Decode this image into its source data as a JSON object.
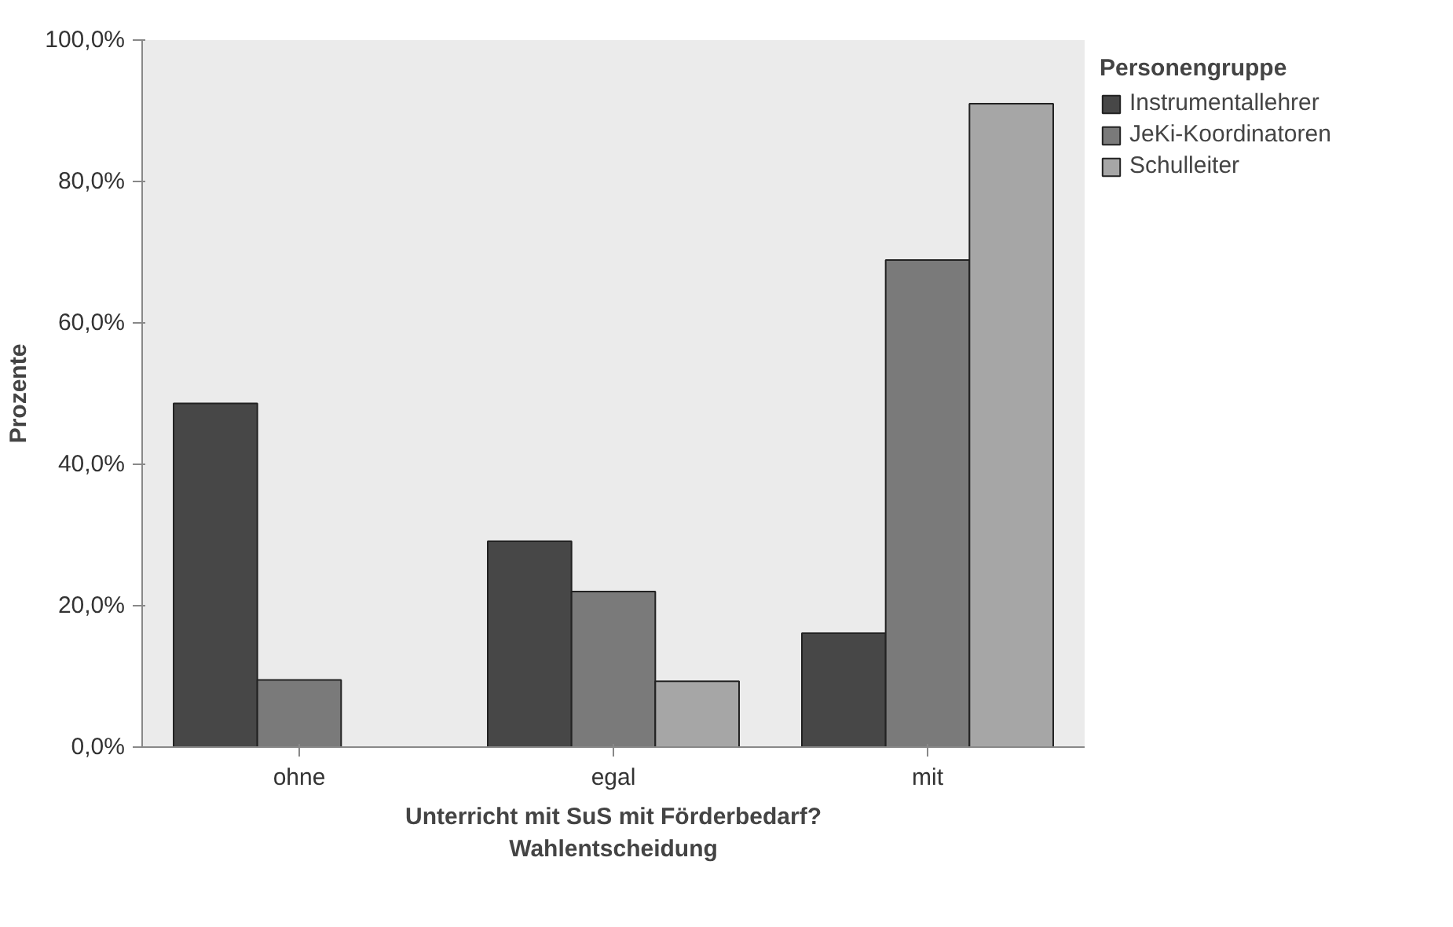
{
  "chart_data": {
    "type": "bar",
    "xlabel": "Unterricht mit SuS mit Förderbedarf?\nWahlentscheidung",
    "ylabel": "Prozente",
    "legend_title": "Personengruppe",
    "categories": [
      "ohne",
      "egal",
      "mit"
    ],
    "series": [
      {
        "name": "Instrumentallehrer",
        "color": "#474747",
        "values": [
          48.6,
          29.1,
          16.1
        ]
      },
      {
        "name": "JeKi-Koordinatoren",
        "color": "#7a7a7a",
        "values": [
          9.5,
          22.0,
          68.9
        ]
      },
      {
        "name": "Schulleiter",
        "color": "#a6a6a6",
        "values": [
          null,
          9.3,
          91.0
        ]
      }
    ],
    "ylim": [
      0,
      100
    ],
    "yticks": [
      {
        "value": 0,
        "label": "0,0%"
      },
      {
        "value": 20,
        "label": "20,0%"
      },
      {
        "value": 40,
        "label": "40,0%"
      },
      {
        "value": 60,
        "label": "60,0%"
      },
      {
        "value": 80,
        "label": "80,0%"
      },
      {
        "value": 100,
        "label": "100,0%"
      }
    ],
    "grid": false,
    "legend": "top right"
  }
}
